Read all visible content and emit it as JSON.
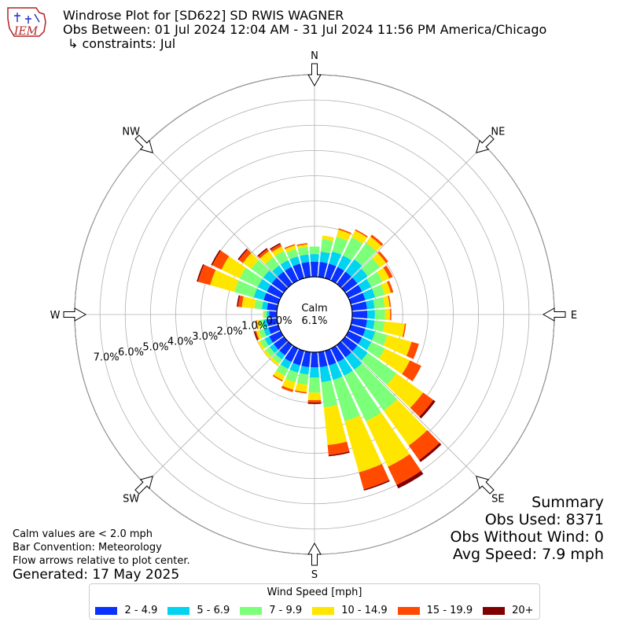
{
  "header": {
    "line1": "Windrose Plot for [SD622] SD RWIS WAGNER",
    "line2": "Obs Between: 01 Jul 2024 12:04 AM - 31 Jul 2024 11:56 PM America/Chicago",
    "line3": "↳ constraints: Jul",
    "logo_text": "IEM"
  },
  "notes": {
    "calm_note": "Calm values are < 2.0 mph",
    "bar_convention": "Bar Convention: Meteorology",
    "flow_note": "Flow arrows relative to plot center.",
    "generated": "Generated: 17 May 2025"
  },
  "summary": {
    "title": "Summary",
    "obs_used": "Obs Used: 8371",
    "obs_without_wind": "Obs Without Wind: 0",
    "avg_speed": "Avg Speed: 7.9 mph"
  },
  "calm": {
    "label": "Calm",
    "value": "6.1%"
  },
  "legend": {
    "title": "Wind Speed [mph]",
    "items": [
      {
        "label": "2 - 4.9",
        "color": "#0a32ff"
      },
      {
        "label": "5 - 6.9",
        "color": "#00d4f0"
      },
      {
        "label": "7 - 9.9",
        "color": "#7cff79"
      },
      {
        "label": "10 - 14.9",
        "color": "#ffe600"
      },
      {
        "label": "15 - 19.9",
        "color": "#ff4a00"
      },
      {
        "label": "20+",
        "color": "#800000"
      }
    ]
  },
  "directions": [
    {
      "label": "N",
      "angle": 0
    },
    {
      "label": "NE",
      "angle": 45
    },
    {
      "label": "E",
      "angle": 90
    },
    {
      "label": "SE",
      "angle": 135
    },
    {
      "label": "S",
      "angle": 180
    },
    {
      "label": "SW",
      "angle": 225
    },
    {
      "label": "W",
      "angle": 270
    },
    {
      "label": "NW",
      "angle": 315
    }
  ],
  "chart_data": {
    "type": "windrose",
    "units": "percent",
    "radial_ticks": [
      "0.0%",
      "1.0%",
      "2.0%",
      "3.0%",
      "4.0%",
      "5.0%",
      "6.0%",
      "7.0%"
    ],
    "radial_max": 8.0,
    "bins": [
      "2 - 4.9",
      "5 - 6.9",
      "7 - 9.9",
      "10 - 14.9",
      "15 - 19.9",
      "20+"
    ],
    "sectors": [
      {
        "dir": 0,
        "values": [
          0.6,
          0.3,
          0.3,
          0.0,
          0.0,
          0.0
        ]
      },
      {
        "dir": 10,
        "values": [
          0.6,
          0.4,
          0.5,
          0.15,
          0.0,
          0.0
        ]
      },
      {
        "dir": 20,
        "values": [
          0.6,
          0.5,
          0.6,
          0.3,
          0.05,
          0.0
        ]
      },
      {
        "dir": 30,
        "values": [
          0.6,
          0.5,
          0.8,
          0.3,
          0.05,
          0.0
        ]
      },
      {
        "dir": 40,
        "values": [
          0.6,
          0.6,
          0.8,
          0.3,
          0.1,
          0.0
        ]
      },
      {
        "dir": 50,
        "values": [
          0.6,
          0.5,
          0.6,
          0.3,
          0.1,
          0.0
        ]
      },
      {
        "dir": 60,
        "values": [
          0.6,
          0.4,
          0.5,
          0.3,
          0.15,
          0.0
        ]
      },
      {
        "dir": 70,
        "values": [
          0.6,
          0.4,
          0.4,
          0.25,
          0.1,
          0.0
        ]
      },
      {
        "dir": 80,
        "values": [
          0.6,
          0.3,
          0.4,
          0.2,
          0.05,
          0.0
        ]
      },
      {
        "dir": 90,
        "values": [
          0.6,
          0.3,
          0.4,
          0.2,
          0.05,
          0.0
        ]
      },
      {
        "dir": 100,
        "values": [
          0.6,
          0.3,
          0.4,
          0.8,
          0.05,
          0.0
        ]
      },
      {
        "dir": 110,
        "values": [
          0.6,
          0.4,
          0.5,
          1.0,
          0.3,
          0.0
        ]
      },
      {
        "dir": 120,
        "values": [
          0.6,
          0.4,
          0.6,
          1.1,
          0.5,
          0.0
        ]
      },
      {
        "dir": 130,
        "values": [
          0.6,
          0.5,
          1.4,
          1.3,
          0.5,
          0.1
        ]
      },
      {
        "dir": 140,
        "values": [
          0.6,
          0.6,
          2.0,
          1.7,
          0.7,
          0.1
        ]
      },
      {
        "dir": 150,
        "values": [
          0.6,
          0.6,
          2.0,
          2.0,
          0.8,
          0.15
        ]
      },
      {
        "dir": 160,
        "values": [
          0.6,
          0.6,
          1.7,
          2.1,
          0.7,
          0.05
        ]
      },
      {
        "dir": 170,
        "values": [
          0.6,
          0.6,
          1.0,
          1.5,
          0.4,
          0.05
        ]
      },
      {
        "dir": 180,
        "values": [
          0.6,
          0.4,
          0.6,
          0.3,
          0.1,
          0.05
        ]
      },
      {
        "dir": 190,
        "values": [
          0.6,
          0.3,
          0.4,
          0.3,
          0.05,
          0.0
        ]
      },
      {
        "dir": 200,
        "values": [
          0.6,
          0.3,
          0.4,
          0.3,
          0.1,
          0.0
        ]
      },
      {
        "dir": 210,
        "values": [
          0.6,
          0.3,
          0.3,
          0.2,
          0.05,
          0.0
        ]
      },
      {
        "dir": 220,
        "values": [
          0.5,
          0.2,
          0.2,
          0.1,
          0.0,
          0.0
        ]
      },
      {
        "dir": 230,
        "values": [
          0.5,
          0.2,
          0.2,
          0.1,
          0.0,
          0.0
        ]
      },
      {
        "dir": 240,
        "values": [
          0.5,
          0.2,
          0.2,
          0.1,
          0.0,
          0.0
        ]
      },
      {
        "dir": 250,
        "values": [
          0.4,
          0.2,
          0.2,
          0.1,
          0.05,
          0.05
        ]
      },
      {
        "dir": 260,
        "values": [
          0.4,
          0.15,
          0.15,
          0.1,
          0.05,
          0.0
        ]
      },
      {
        "dir": 270,
        "values": [
          0.3,
          0.1,
          0.1,
          0.05,
          0.0,
          0.0
        ]
      },
      {
        "dir": 280,
        "values": [
          0.4,
          0.2,
          0.3,
          0.5,
          0.15,
          0.05
        ]
      },
      {
        "dir": 290,
        "values": [
          0.6,
          0.4,
          0.8,
          1.0,
          0.5,
          0.05
        ]
      },
      {
        "dir": 300,
        "values": [
          0.6,
          0.4,
          0.8,
          0.8,
          0.4,
          0.05
        ]
      },
      {
        "dir": 310,
        "values": [
          0.6,
          0.4,
          0.6,
          0.4,
          0.2,
          0.05
        ]
      },
      {
        "dir": 320,
        "values": [
          0.6,
          0.3,
          0.4,
          0.3,
          0.1,
          0.05
        ]
      },
      {
        "dir": 330,
        "values": [
          0.6,
          0.3,
          0.4,
          0.2,
          0.1,
          0.05
        ]
      },
      {
        "dir": 340,
        "values": [
          0.6,
          0.3,
          0.3,
          0.15,
          0.05,
          0.0
        ]
      },
      {
        "dir": 350,
        "values": [
          0.6,
          0.3,
          0.3,
          0.1,
          0.05,
          0.0
        ]
      }
    ]
  }
}
